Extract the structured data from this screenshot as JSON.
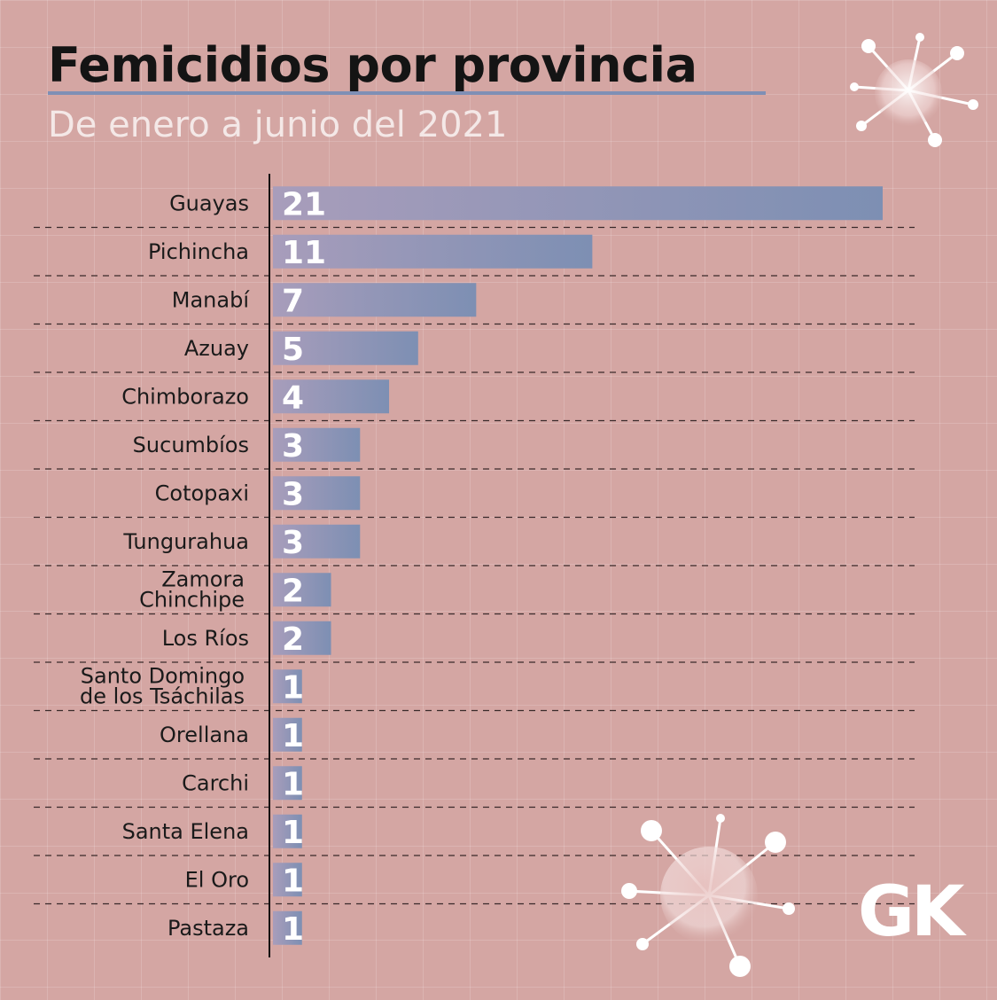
{
  "header": {
    "title": "Femicidios por provincia",
    "subtitle": "De enero a junio del 2021"
  },
  "logo": "GK",
  "colors": {
    "background": "#d4a6a3",
    "bar_start": "#a89dbb",
    "bar_end": "#7d8fb3",
    "text": "#1a1a1a"
  },
  "chart_data": {
    "type": "bar",
    "orientation": "horizontal",
    "categories": [
      "Guayas",
      "Pichincha",
      "Manabí",
      "Azuay",
      "Chimborazo",
      "Sucumbíos",
      "Cotopaxi",
      "Tungurahua",
      "Zamora Chinchipe",
      "Los Ríos",
      "Santo Domingo de los Tsáchilas",
      "Orellana",
      "Carchi",
      "Santa Elena",
      "El Oro",
      "Pastaza"
    ],
    "category_lines": [
      [
        "Guayas"
      ],
      [
        "Pichincha"
      ],
      [
        "Manabí"
      ],
      [
        "Azuay"
      ],
      [
        "Chimborazo"
      ],
      [
        "Sucumbíos"
      ],
      [
        "Cotopaxi"
      ],
      [
        "Tungurahua"
      ],
      [
        "Zamora",
        "Chinchipe"
      ],
      [
        "Los Ríos"
      ],
      [
        "Santo Domingo",
        "de los Tsáchilas"
      ],
      [
        "Orellana"
      ],
      [
        "Carchi"
      ],
      [
        "Santa Elena"
      ],
      [
        "El Oro"
      ],
      [
        "Pastaza"
      ]
    ],
    "values": [
      21,
      11,
      7,
      5,
      4,
      3,
      3,
      3,
      2,
      2,
      1,
      1,
      1,
      1,
      1,
      1
    ],
    "title": "Femicidios por provincia",
    "subtitle": "De enero a junio del 2021",
    "xlim": [
      0,
      21
    ],
    "data_labels": true,
    "grid": true,
    "legend": "none"
  }
}
